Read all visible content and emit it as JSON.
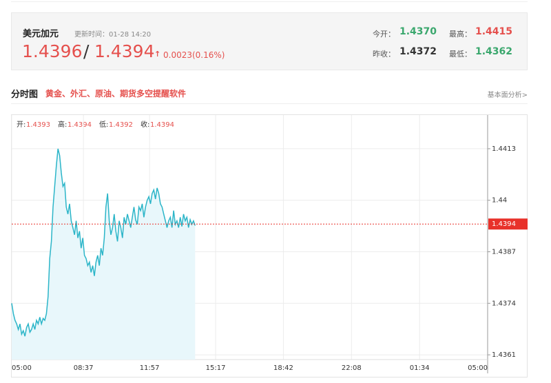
{
  "header": {
    "symbol": "美元加元",
    "update_time": "更新时间：01-28 14:20",
    "bid": "1.4396",
    "separator": "/",
    "ask": "1.4394",
    "arrow": "↑",
    "change": "0.0023(0.16%)",
    "open_label": "今开：",
    "open": "1.4370",
    "high_label": "最高：",
    "high": "1.4415",
    "prev_close_label": "昨收：",
    "prev_close": "1.4372",
    "low_label": "最低：",
    "low": "1.4362"
  },
  "section": {
    "title": "分时图",
    "link": "黄金、外汇、原油、期货多空提醒软件",
    "more": "基本面分析>"
  },
  "chart_data": {
    "type": "line",
    "color": "#2bb5c8",
    "fill_color": "#e8f7fb",
    "ohlc": {
      "open_label": "开:",
      "open": "1.4393",
      "high_label": "高:",
      "high": "1.4394",
      "low_label": "低:",
      "low": "1.4392",
      "close_label": "收:",
      "close": "1.4394"
    },
    "xlim": [
      0,
      1440
    ],
    "xticks": [
      {
        "value": 0,
        "label": "05:00"
      },
      {
        "value": 217,
        "label": "08:37"
      },
      {
        "value": 417,
        "label": "11:57"
      },
      {
        "value": 617,
        "label": "15:17"
      },
      {
        "value": 822,
        "label": "18:42"
      },
      {
        "value": 1028,
        "label": "22:08"
      },
      {
        "value": 1234,
        "label": "01:34"
      },
      {
        "value": 1440,
        "label": "05:00"
      }
    ],
    "ylim": [
      1.43598,
      1.44215
    ],
    "yticks": [
      1.4361,
      1.4374,
      1.4387,
      1.44,
      {
        "value": 1.4413,
        "label": "1.4413"
      }
    ],
    "current_price": 1.4394,
    "current_color": "#e8312a",
    "x": [
      0,
      5,
      10,
      15,
      20,
      25,
      30,
      35,
      40,
      45,
      50,
      55,
      60,
      65,
      70,
      75,
      80,
      85,
      90,
      95,
      100,
      105,
      110,
      115,
      120,
      125,
      130,
      135,
      140,
      145,
      150,
      155,
      160,
      165,
      170,
      175,
      180,
      185,
      190,
      195,
      200,
      205,
      210,
      215,
      220,
      225,
      230,
      235,
      240,
      245,
      250,
      255,
      260,
      265,
      270,
      275,
      280,
      285,
      290,
      295,
      300,
      305,
      310,
      315,
      320,
      325,
      330,
      335,
      340,
      345,
      350,
      355,
      360,
      365,
      370,
      375,
      380,
      385,
      390,
      395,
      400,
      405,
      410,
      415,
      420,
      425,
      430,
      435,
      440,
      445,
      450,
      455,
      460,
      465,
      470,
      475,
      480,
      485,
      490,
      495,
      500,
      505,
      510,
      515,
      520,
      525,
      530,
      535,
      540,
      545,
      550,
      555
    ],
    "values": [
      1.4374,
      1.43714,
      1.43697,
      1.43688,
      1.43674,
      1.43688,
      1.43662,
      1.43671,
      1.43657,
      1.43679,
      1.43688,
      1.43667,
      1.43674,
      1.43688,
      1.43674,
      1.43697,
      1.43688,
      1.43705,
      1.43688,
      1.43702,
      1.43697,
      1.43714,
      1.43757,
      1.43853,
      1.43896,
      1.43983,
      1.44035,
      1.44087,
      1.4413,
      1.44113,
      1.44069,
      1.44035,
      1.44043,
      1.43983,
      1.43965,
      1.43991,
      1.43948,
      1.43931,
      1.43913,
      1.43948,
      1.43905,
      1.43922,
      1.43879,
      1.43905,
      1.43861,
      1.43853,
      1.43835,
      1.43844,
      1.43818,
      1.43835,
      1.43809,
      1.43844,
      1.43861,
      1.43835,
      1.43879,
      1.43861,
      1.43905,
      1.43983,
      1.44017,
      1.43948,
      1.43913,
      1.43931,
      1.43965,
      1.43922,
      1.43896,
      1.43948,
      1.43931,
      1.43905,
      1.43957,
      1.43939,
      1.43965,
      1.43948,
      1.43931,
      1.43957,
      1.43983,
      1.43951,
      1.43939,
      1.43983,
      1.43974,
      1.43991,
      1.43957,
      1.43983,
      1.44,
      1.44009,
      1.43991,
      1.44017,
      1.44026,
      1.44003,
      1.44031,
      1.44017,
      1.43991,
      1.43983,
      1.43965,
      1.43948,
      1.43931,
      1.43948,
      1.43957,
      1.43931,
      1.43974,
      1.43939,
      1.43948,
      1.43931,
      1.43957,
      1.43934,
      1.43965,
      1.43948,
      1.43957,
      1.43931,
      1.43951,
      1.43939,
      1.43948,
      1.43936
    ],
    "grid": true
  }
}
